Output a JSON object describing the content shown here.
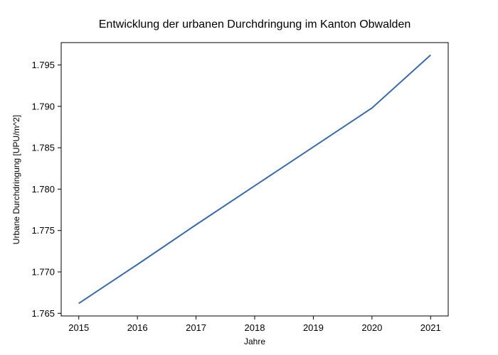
{
  "chart_data": {
    "type": "line",
    "title": "Entwicklung der urbanen Durchdringung im Kanton Obwalden",
    "xlabel": "Jahre",
    "ylabel": "Urbane Durchdringung [UPU/m^2]",
    "x": [
      2015,
      2016,
      2017,
      2018,
      2019,
      2020,
      2021
    ],
    "series": [
      {
        "values": [
          1.7662,
          1.7709,
          1.7757,
          1.7804,
          1.7851,
          1.7898,
          1.7962
        ]
      }
    ],
    "xticks": [
      "2015",
      "2016",
      "2017",
      "2018",
      "2019",
      "2020",
      "2021"
    ],
    "yticks": [
      "1.765",
      "1.770",
      "1.775",
      "1.780",
      "1.785",
      "1.790",
      "1.795"
    ],
    "ylim": [
      1.76468,
      1.7977
    ],
    "xlim": [
      2014.7,
      2021.3
    ],
    "grid": false,
    "line_color": "#3a6aa8"
  }
}
